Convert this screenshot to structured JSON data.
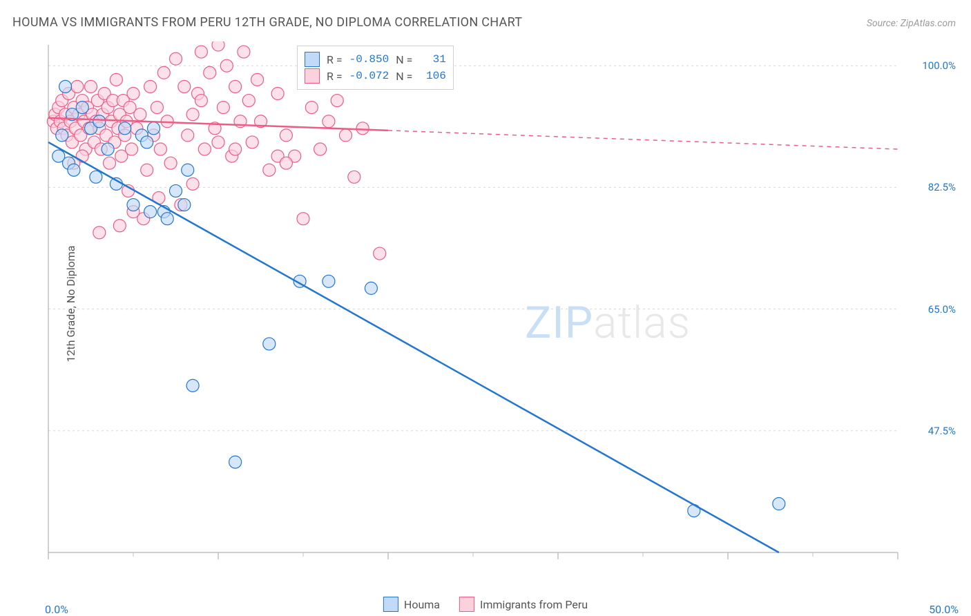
{
  "title": "HOUMA VS IMMIGRANTS FROM PERU 12TH GRADE, NO DIPLOMA CORRELATION CHART",
  "source": "Source: ZipAtlas.com",
  "watermark": {
    "z": "ZIP",
    "rest": "atlas"
  },
  "ylabel": "12th Grade, No Diploma",
  "chart": {
    "type": "scatter",
    "xlim": [
      0,
      50
    ],
    "ylim": [
      30,
      103
    ],
    "x_ticks_major": [
      0,
      10,
      20,
      30,
      40,
      50
    ],
    "x_ticks_minor": [
      5,
      15,
      25,
      35,
      45
    ],
    "y_gridlines": [
      47.5,
      65.0,
      82.5,
      100.0
    ],
    "x_label_min": "0.0%",
    "x_label_max": "50.0%",
    "y_tick_labels": [
      {
        "value": 100.0,
        "text": "100.0%"
      },
      {
        "value": 82.5,
        "text": "82.5%"
      },
      {
        "value": 65.0,
        "text": "65.0%"
      },
      {
        "value": 47.5,
        "text": "47.5%"
      }
    ],
    "axis_color": "#c0c0c0",
    "grid_color": "#d8d8d8",
    "background_color": "#ffffff",
    "marker_radius": 9,
    "marker_stroke_width": 1.2,
    "line_width": 2.5,
    "series": [
      {
        "id": "houma",
        "label": "Houma",
        "fill": "#c2daf7",
        "stroke": "#2176d2",
        "stats": {
          "R": "-0.850",
          "N": "31"
        },
        "regression": {
          "x1": 0,
          "y1": 89,
          "x2": 43,
          "y2": 30,
          "solid_until_x": 43
        },
        "points": [
          [
            1.0,
            97
          ],
          [
            1.4,
            93
          ],
          [
            0.8,
            90
          ],
          [
            2.5,
            91
          ],
          [
            2.0,
            94
          ],
          [
            3.0,
            92
          ],
          [
            1.2,
            86
          ],
          [
            2.8,
            84
          ],
          [
            3.5,
            88
          ],
          [
            4.5,
            91
          ],
          [
            5.5,
            90
          ],
          [
            6.2,
            91
          ],
          [
            4.0,
            83
          ],
          [
            5.0,
            80
          ],
          [
            6.0,
            79
          ],
          [
            6.8,
            79
          ],
          [
            5.8,
            89
          ],
          [
            7.5,
            82
          ],
          [
            8.2,
            85
          ],
          [
            7.0,
            78
          ],
          [
            8.0,
            80
          ],
          [
            8.5,
            54
          ],
          [
            11.0,
            43
          ],
          [
            13.0,
            60
          ],
          [
            14.8,
            69
          ],
          [
            16.5,
            69
          ],
          [
            19.0,
            68
          ],
          [
            38.0,
            36
          ],
          [
            43.0,
            37
          ],
          [
            1.5,
            85
          ],
          [
            0.6,
            87
          ]
        ]
      },
      {
        "id": "peru",
        "label": "Immigrants from Peru",
        "fill": "#fcd1de",
        "stroke": "#ec5c85",
        "stats": {
          "R": "-0.072",
          "N": "106"
        },
        "regression": {
          "x1": 0,
          "y1": 92.5,
          "x2": 50,
          "y2": 88.0,
          "solid_until_x": 20
        },
        "points": [
          [
            0.3,
            92
          ],
          [
            0.4,
            93
          ],
          [
            0.5,
            91
          ],
          [
            0.6,
            94
          ],
          [
            0.7,
            92
          ],
          [
            0.8,
            95
          ],
          [
            0.9,
            91
          ],
          [
            1.0,
            93
          ],
          [
            1.1,
            90
          ],
          [
            1.2,
            96
          ],
          [
            1.3,
            92
          ],
          [
            1.4,
            89
          ],
          [
            1.5,
            94
          ],
          [
            1.6,
            91
          ],
          [
            1.7,
            97
          ],
          [
            1.8,
            93
          ],
          [
            1.9,
            90
          ],
          [
            2.0,
            95
          ],
          [
            2.1,
            92
          ],
          [
            2.2,
            88
          ],
          [
            2.3,
            94
          ],
          [
            2.4,
            91
          ],
          [
            2.5,
            97
          ],
          [
            2.6,
            93
          ],
          [
            2.7,
            89
          ],
          [
            2.8,
            92
          ],
          [
            2.9,
            95
          ],
          [
            3.0,
            91
          ],
          [
            3.1,
            88
          ],
          [
            3.2,
            93
          ],
          [
            3.3,
            96
          ],
          [
            3.4,
            90
          ],
          [
            3.5,
            94
          ],
          [
            3.6,
            86
          ],
          [
            3.7,
            92
          ],
          [
            3.8,
            95
          ],
          [
            3.9,
            89
          ],
          [
            4.0,
            98
          ],
          [
            4.1,
            91
          ],
          [
            4.2,
            93
          ],
          [
            4.3,
            87
          ],
          [
            4.4,
            95
          ],
          [
            4.5,
            90
          ],
          [
            4.6,
            92
          ],
          [
            4.7,
            82
          ],
          [
            4.8,
            94
          ],
          [
            4.9,
            88
          ],
          [
            5.0,
            96
          ],
          [
            5.2,
            91
          ],
          [
            5.4,
            93
          ],
          [
            5.6,
            78
          ],
          [
            5.8,
            85
          ],
          [
            6.0,
            97
          ],
          [
            6.2,
            90
          ],
          [
            6.4,
            94
          ],
          [
            6.6,
            88
          ],
          [
            6.8,
            99
          ],
          [
            7.0,
            92
          ],
          [
            7.2,
            86
          ],
          [
            7.5,
            101
          ],
          [
            7.8,
            80
          ],
          [
            8.0,
            97
          ],
          [
            8.2,
            90
          ],
          [
            8.5,
            93
          ],
          [
            8.8,
            96
          ],
          [
            9.0,
            102
          ],
          [
            9.2,
            88
          ],
          [
            9.5,
            99
          ],
          [
            9.8,
            91
          ],
          [
            10.0,
            103
          ],
          [
            10.3,
            94
          ],
          [
            10.5,
            100
          ],
          [
            10.8,
            87
          ],
          [
            11.0,
            97
          ],
          [
            11.3,
            92
          ],
          [
            11.5,
            102
          ],
          [
            11.8,
            95
          ],
          [
            12.0,
            89
          ],
          [
            12.3,
            98
          ],
          [
            12.5,
            92
          ],
          [
            13.0,
            85
          ],
          [
            13.5,
            96
          ],
          [
            14.0,
            90
          ],
          [
            14.5,
            87
          ],
          [
            15.0,
            78
          ],
          [
            15.5,
            94
          ],
          [
            16.0,
            88
          ],
          [
            16.5,
            92
          ],
          [
            17.0,
            95
          ],
          [
            17.5,
            90
          ],
          [
            18.0,
            84
          ],
          [
            18.5,
            91
          ],
          [
            19.0,
            99
          ],
          [
            19.5,
            73
          ],
          [
            8.5,
            83
          ],
          [
            4.2,
            77
          ],
          [
            3.0,
            76
          ],
          [
            5.0,
            79
          ],
          [
            6.5,
            81
          ],
          [
            2.0,
            87
          ],
          [
            1.5,
            86
          ],
          [
            13.5,
            87
          ],
          [
            14.0,
            86
          ],
          [
            9.0,
            95
          ],
          [
            10.0,
            89
          ],
          [
            11.0,
            88
          ]
        ]
      }
    ]
  },
  "stats_legend": {
    "labels": {
      "R": "R =",
      "N": "N ="
    }
  },
  "bottom_legend": {
    "houma": "Houma",
    "peru": "Immigrants from Peru"
  }
}
